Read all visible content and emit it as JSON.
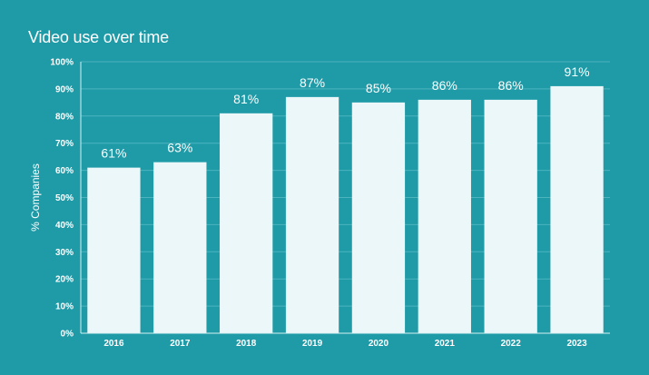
{
  "chart_data": {
    "type": "bar",
    "title": "Video use over time",
    "xlabel": "",
    "ylabel": "% Companies",
    "categories": [
      "2016",
      "2017",
      "2018",
      "2019",
      "2020",
      "2021",
      "2022",
      "2023"
    ],
    "values": [
      61,
      63,
      81,
      87,
      85,
      86,
      86,
      91
    ],
    "data_labels": [
      "61%",
      "63%",
      "81%",
      "87%",
      "85%",
      "86%",
      "86%",
      "91%"
    ],
    "ylim": [
      0,
      100
    ],
    "y_ticks": [
      0,
      10,
      20,
      30,
      40,
      50,
      60,
      70,
      80,
      90,
      100
    ],
    "y_tick_labels": [
      "0%",
      "10%",
      "20%",
      "30%",
      "40%",
      "50%",
      "60%",
      "70%",
      "80%",
      "90%",
      "100%"
    ],
    "grid": true,
    "legend": "none"
  },
  "colors": {
    "background": "#1f9ba8",
    "bar": "#ebf7f8",
    "gridline": "#4db3bd",
    "axis": "#d7eff1",
    "text": "#ffffff"
  }
}
